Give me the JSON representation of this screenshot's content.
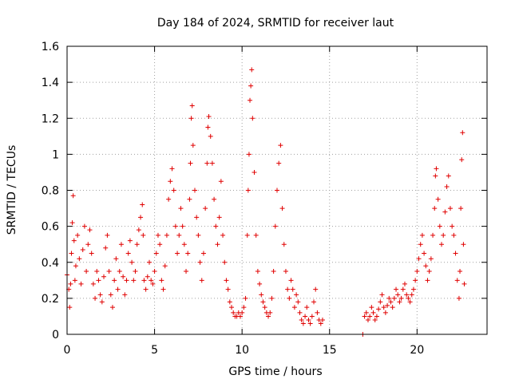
{
  "chart_data": {
    "type": "scatter",
    "title": "Day 184 of 2024, SRMTID for receiver laut",
    "xlabel": "GPS time / hours",
    "ylabel": "SRMTID / TECUs",
    "xlim": [
      0,
      24
    ],
    "ylim": [
      0,
      1.6
    ],
    "xticks": [
      0,
      5,
      10,
      15,
      20
    ],
    "xtick_labels": [
      "0",
      "5",
      "10",
      "15",
      "20"
    ],
    "yticks": [
      0,
      0.2,
      0.4,
      0.6,
      0.8,
      1.0,
      1.2,
      1.4,
      1.6
    ],
    "ytick_labels": [
      "0",
      "0.2",
      "0.4",
      "0.6",
      "0.8",
      "1",
      "1.2",
      "1.4",
      "1.6"
    ],
    "grid": true,
    "marker": "+",
    "color": "#e00000",
    "series": [
      {
        "name": "laut",
        "points": [
          [
            0.0,
            0.33
          ],
          [
            0.1,
            0.25
          ],
          [
            0.15,
            0.15
          ],
          [
            0.2,
            0.28
          ],
          [
            0.25,
            0.45
          ],
          [
            0.3,
            0.62
          ],
          [
            0.35,
            0.77
          ],
          [
            0.4,
            0.52
          ],
          [
            0.45,
            0.3
          ],
          [
            0.5,
            0.38
          ],
          [
            0.6,
            0.55
          ],
          [
            0.7,
            0.42
          ],
          [
            0.8,
            0.28
          ],
          [
            0.9,
            0.47
          ],
          [
            1.0,
            0.6
          ],
          [
            1.1,
            0.35
          ],
          [
            1.2,
            0.5
          ],
          [
            1.3,
            0.58
          ],
          [
            1.4,
            0.45
          ],
          [
            1.5,
            0.28
          ],
          [
            1.6,
            0.2
          ],
          [
            1.7,
            0.35
          ],
          [
            1.8,
            0.3
          ],
          [
            1.9,
            0.22
          ],
          [
            2.0,
            0.18
          ],
          [
            2.1,
            0.32
          ],
          [
            2.2,
            0.48
          ],
          [
            2.3,
            0.55
          ],
          [
            2.4,
            0.35
          ],
          [
            2.5,
            0.22
          ],
          [
            2.6,
            0.15
          ],
          [
            2.7,
            0.3
          ],
          [
            2.8,
            0.42
          ],
          [
            2.9,
            0.25
          ],
          [
            3.0,
            0.35
          ],
          [
            3.1,
            0.5
          ],
          [
            3.2,
            0.32
          ],
          [
            3.3,
            0.22
          ],
          [
            3.4,
            0.3
          ],
          [
            3.5,
            0.45
          ],
          [
            3.6,
            0.52
          ],
          [
            3.7,
            0.4
          ],
          [
            3.8,
            0.3
          ],
          [
            3.9,
            0.35
          ],
          [
            4.0,
            0.5
          ],
          [
            4.1,
            0.58
          ],
          [
            4.2,
            0.65
          ],
          [
            4.3,
            0.72
          ],
          [
            4.35,
            0.55
          ],
          [
            4.4,
            0.3
          ],
          [
            4.5,
            0.25
          ],
          [
            4.6,
            0.32
          ],
          [
            4.7,
            0.4
          ],
          [
            4.8,
            0.3
          ],
          [
            4.9,
            0.28
          ],
          [
            5.0,
            0.35
          ],
          [
            5.1,
            0.45
          ],
          [
            5.2,
            0.55
          ],
          [
            5.3,
            0.5
          ],
          [
            5.4,
            0.3
          ],
          [
            5.5,
            0.25
          ],
          [
            5.6,
            0.38
          ],
          [
            5.7,
            0.55
          ],
          [
            5.8,
            0.75
          ],
          [
            5.9,
            0.85
          ],
          [
            6.0,
            0.92
          ],
          [
            6.1,
            0.8
          ],
          [
            6.2,
            0.6
          ],
          [
            6.3,
            0.45
          ],
          [
            6.4,
            0.55
          ],
          [
            6.5,
            0.7
          ],
          [
            6.6,
            0.6
          ],
          [
            6.7,
            0.5
          ],
          [
            6.8,
            0.35
          ],
          [
            6.9,
            0.45
          ],
          [
            7.0,
            0.75
          ],
          [
            7.05,
            0.95
          ],
          [
            7.1,
            1.2
          ],
          [
            7.15,
            1.27
          ],
          [
            7.2,
            1.05
          ],
          [
            7.3,
            0.8
          ],
          [
            7.4,
            0.65
          ],
          [
            7.5,
            0.55
          ],
          [
            7.6,
            0.4
          ],
          [
            7.7,
            0.3
          ],
          [
            7.8,
            0.45
          ],
          [
            7.9,
            0.7
          ],
          [
            8.0,
            0.95
          ],
          [
            8.05,
            1.15
          ],
          [
            8.1,
            1.21
          ],
          [
            8.2,
            1.1
          ],
          [
            8.3,
            0.95
          ],
          [
            8.4,
            0.75
          ],
          [
            8.5,
            0.6
          ],
          [
            8.6,
            0.5
          ],
          [
            8.7,
            0.65
          ],
          [
            8.8,
            0.85
          ],
          [
            8.9,
            0.55
          ],
          [
            9.0,
            0.4
          ],
          [
            9.1,
            0.3
          ],
          [
            9.2,
            0.25
          ],
          [
            9.3,
            0.18
          ],
          [
            9.4,
            0.15
          ],
          [
            9.5,
            0.12
          ],
          [
            9.6,
            0.1
          ],
          [
            9.7,
            0.1
          ],
          [
            9.8,
            0.12
          ],
          [
            9.9,
            0.1
          ],
          [
            10.0,
            0.12
          ],
          [
            10.1,
            0.15
          ],
          [
            10.2,
            0.2
          ],
          [
            10.3,
            0.55
          ],
          [
            10.35,
            0.8
          ],
          [
            10.4,
            1.0
          ],
          [
            10.45,
            1.3
          ],
          [
            10.5,
            1.38
          ],
          [
            10.55,
            1.47
          ],
          [
            10.6,
            1.2
          ],
          [
            10.7,
            0.9
          ],
          [
            10.8,
            0.55
          ],
          [
            10.9,
            0.35
          ],
          [
            11.0,
            0.28
          ],
          [
            11.1,
            0.22
          ],
          [
            11.2,
            0.18
          ],
          [
            11.3,
            0.15
          ],
          [
            11.4,
            0.12
          ],
          [
            11.5,
            0.1
          ],
          [
            11.6,
            0.12
          ],
          [
            11.7,
            0.2
          ],
          [
            11.8,
            0.35
          ],
          [
            11.9,
            0.6
          ],
          [
            12.0,
            0.8
          ],
          [
            12.1,
            0.95
          ],
          [
            12.2,
            1.05
          ],
          [
            12.3,
            0.7
          ],
          [
            12.4,
            0.5
          ],
          [
            12.5,
            0.35
          ],
          [
            12.6,
            0.25
          ],
          [
            12.7,
            0.2
          ],
          [
            12.8,
            0.3
          ],
          [
            12.9,
            0.25
          ],
          [
            13.0,
            0.15
          ],
          [
            13.1,
            0.22
          ],
          [
            13.2,
            0.18
          ],
          [
            13.3,
            0.12
          ],
          [
            13.4,
            0.08
          ],
          [
            13.5,
            0.06
          ],
          [
            13.6,
            0.1
          ],
          [
            13.7,
            0.15
          ],
          [
            13.8,
            0.08
          ],
          [
            13.9,
            0.06
          ],
          [
            14.0,
            0.1
          ],
          [
            14.1,
            0.18
          ],
          [
            14.2,
            0.25
          ],
          [
            14.3,
            0.12
          ],
          [
            14.4,
            0.08
          ],
          [
            14.5,
            0.06
          ],
          [
            14.6,
            0.08
          ],
          [
            16.9,
            0.0
          ],
          [
            17.0,
            0.1
          ],
          [
            17.1,
            0.12
          ],
          [
            17.2,
            0.08
          ],
          [
            17.3,
            0.1
          ],
          [
            17.4,
            0.15
          ],
          [
            17.5,
            0.12
          ],
          [
            17.6,
            0.08
          ],
          [
            17.7,
            0.1
          ],
          [
            17.8,
            0.14
          ],
          [
            17.9,
            0.18
          ],
          [
            18.0,
            0.22
          ],
          [
            18.1,
            0.15
          ],
          [
            18.2,
            0.12
          ],
          [
            18.3,
            0.16
          ],
          [
            18.4,
            0.2
          ],
          [
            18.5,
            0.18
          ],
          [
            18.6,
            0.15
          ],
          [
            18.7,
            0.2
          ],
          [
            18.8,
            0.25
          ],
          [
            18.9,
            0.22
          ],
          [
            19.0,
            0.18
          ],
          [
            19.1,
            0.2
          ],
          [
            19.2,
            0.25
          ],
          [
            19.3,
            0.28
          ],
          [
            19.4,
            0.22
          ],
          [
            19.5,
            0.2
          ],
          [
            19.6,
            0.18
          ],
          [
            19.7,
            0.22
          ],
          [
            19.8,
            0.25
          ],
          [
            19.9,
            0.3
          ],
          [
            20.0,
            0.35
          ],
          [
            20.1,
            0.42
          ],
          [
            20.2,
            0.5
          ],
          [
            20.3,
            0.55
          ],
          [
            20.4,
            0.45
          ],
          [
            20.5,
            0.38
          ],
          [
            20.6,
            0.3
          ],
          [
            20.7,
            0.35
          ],
          [
            20.8,
            0.42
          ],
          [
            20.9,
            0.55
          ],
          [
            21.0,
            0.7
          ],
          [
            21.05,
            0.88
          ],
          [
            21.1,
            0.92
          ],
          [
            21.2,
            0.75
          ],
          [
            21.3,
            0.6
          ],
          [
            21.4,
            0.5
          ],
          [
            21.5,
            0.55
          ],
          [
            21.6,
            0.68
          ],
          [
            21.7,
            0.82
          ],
          [
            21.8,
            0.88
          ],
          [
            21.9,
            0.7
          ],
          [
            22.0,
            0.6
          ],
          [
            22.1,
            0.55
          ],
          [
            22.2,
            0.45
          ],
          [
            22.3,
            0.3
          ],
          [
            22.4,
            0.2
          ],
          [
            22.45,
            0.35
          ],
          [
            22.5,
            0.7
          ],
          [
            22.55,
            0.97
          ],
          [
            22.6,
            1.12
          ],
          [
            22.65,
            0.5
          ],
          [
            22.7,
            0.28
          ]
        ]
      }
    ]
  }
}
